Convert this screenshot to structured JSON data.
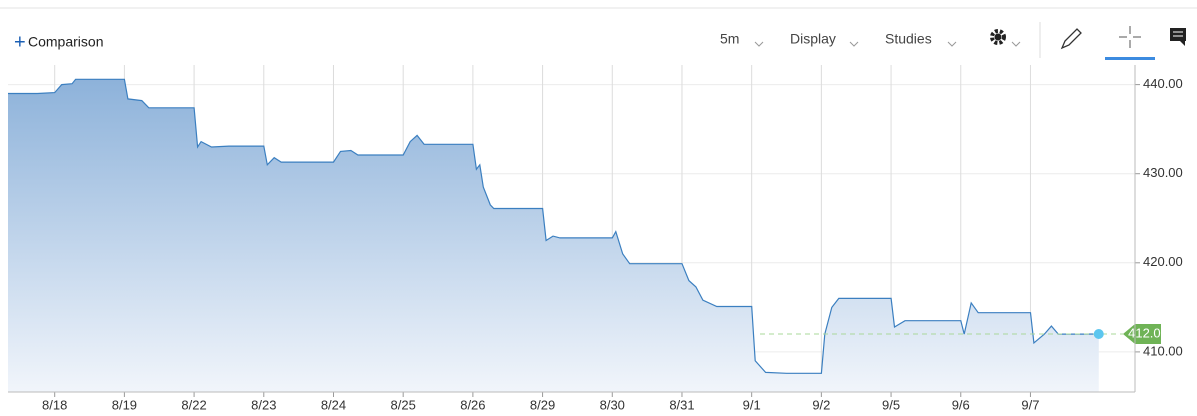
{
  "toolbar": {
    "comparison": "Comparison",
    "interval": "5m",
    "display": "Display",
    "studies": "Studies"
  },
  "chart_data": {
    "type": "area",
    "color": "#3b7fc0",
    "grid": true,
    "x": [
      -0.67,
      -0.5,
      -0.25,
      0,
      0.1,
      0.25,
      0.3,
      0.5,
      0.75,
      1.0,
      1.05,
      1.25,
      1.35,
      1.5,
      1.75,
      2.0,
      2.05,
      2.1,
      2.25,
      2.5,
      2.75,
      3.0,
      3.05,
      3.15,
      3.25,
      3.5,
      3.75,
      4.0,
      4.1,
      4.25,
      4.35,
      4.5,
      4.75,
      5.0,
      5.1,
      5.2,
      5.3,
      5.5,
      5.75,
      6.0,
      6.05,
      6.1,
      6.15,
      6.25,
      6.3,
      6.5,
      6.75,
      7.0,
      7.05,
      7.15,
      7.25,
      7.5,
      7.75,
      8.0,
      8.05,
      8.15,
      8.25,
      8.5,
      8.75,
      9.0,
      9.1,
      9.2,
      9.3,
      9.5,
      9.75,
      10.0,
      10.05,
      10.2,
      10.5,
      10.75,
      11.0,
      11.05,
      11.15,
      11.25,
      11.5,
      11.75,
      12.0,
      12.05,
      12.2,
      12.5,
      12.75,
      13.0,
      13.05,
      13.15,
      13.25,
      13.5,
      13.75,
      14.0,
      14.05,
      14.2,
      14.3,
      14.4,
      14.75,
      14.98
    ],
    "values": [
      439.0,
      439.0,
      439.0,
      439.1,
      440.0,
      440.1,
      440.6,
      440.6,
      440.6,
      440.6,
      438.4,
      438.2,
      437.4,
      437.4,
      437.4,
      437.4,
      433.0,
      433.6,
      433.0,
      433.1,
      433.1,
      433.1,
      431.0,
      431.8,
      431.3,
      431.3,
      431.3,
      431.3,
      432.5,
      432.6,
      432.1,
      432.1,
      432.1,
      432.1,
      433.6,
      434.3,
      433.3,
      433.3,
      433.3,
      433.3,
      430.5,
      431.0,
      428.5,
      426.5,
      426.1,
      426.1,
      426.1,
      426.1,
      422.5,
      423.0,
      422.8,
      422.8,
      422.8,
      422.8,
      423.5,
      421.0,
      419.9,
      419.9,
      419.9,
      419.9,
      418.0,
      417.3,
      415.8,
      415.1,
      415.1,
      415.1,
      409.0,
      407.7,
      407.6,
      407.6,
      407.6,
      412.0,
      415.0,
      416.0,
      416.0,
      416.0,
      416.0,
      412.8,
      413.5,
      413.5,
      413.5,
      413.5,
      412.0,
      415.5,
      414.4,
      414.4,
      414.4,
      414.4,
      411.0,
      412.0,
      412.9,
      412.0,
      412.0,
      412.01
    ],
    "last_price": 412.01,
    "xlim": [
      -0.67,
      15.5
    ],
    "xticks": [
      {
        "value": 0,
        "label": "8/18"
      },
      {
        "value": 1,
        "label": "8/19"
      },
      {
        "value": 2,
        "label": "8/22"
      },
      {
        "value": 3,
        "label": "8/23"
      },
      {
        "value": 4,
        "label": "8/24"
      },
      {
        "value": 5,
        "label": "8/25"
      },
      {
        "value": 6,
        "label": "8/26"
      },
      {
        "value": 7,
        "label": "8/29"
      },
      {
        "value": 8,
        "label": "8/30"
      },
      {
        "value": 9,
        "label": "8/31"
      },
      {
        "value": 10,
        "label": "9/1"
      },
      {
        "value": 11,
        "label": "9/2"
      },
      {
        "value": 12,
        "label": "9/5"
      },
      {
        "value": 13,
        "label": "9/6"
      },
      {
        "value": 14,
        "label": "9/7"
      }
    ],
    "ylim": [
      405.5,
      442.2
    ],
    "yticks": [
      {
        "value": 410,
        "label": "410.00"
      },
      {
        "value": 420,
        "label": "420.00"
      },
      {
        "value": 430,
        "label": "430.00"
      },
      {
        "value": 440,
        "label": "440.00"
      }
    ]
  }
}
